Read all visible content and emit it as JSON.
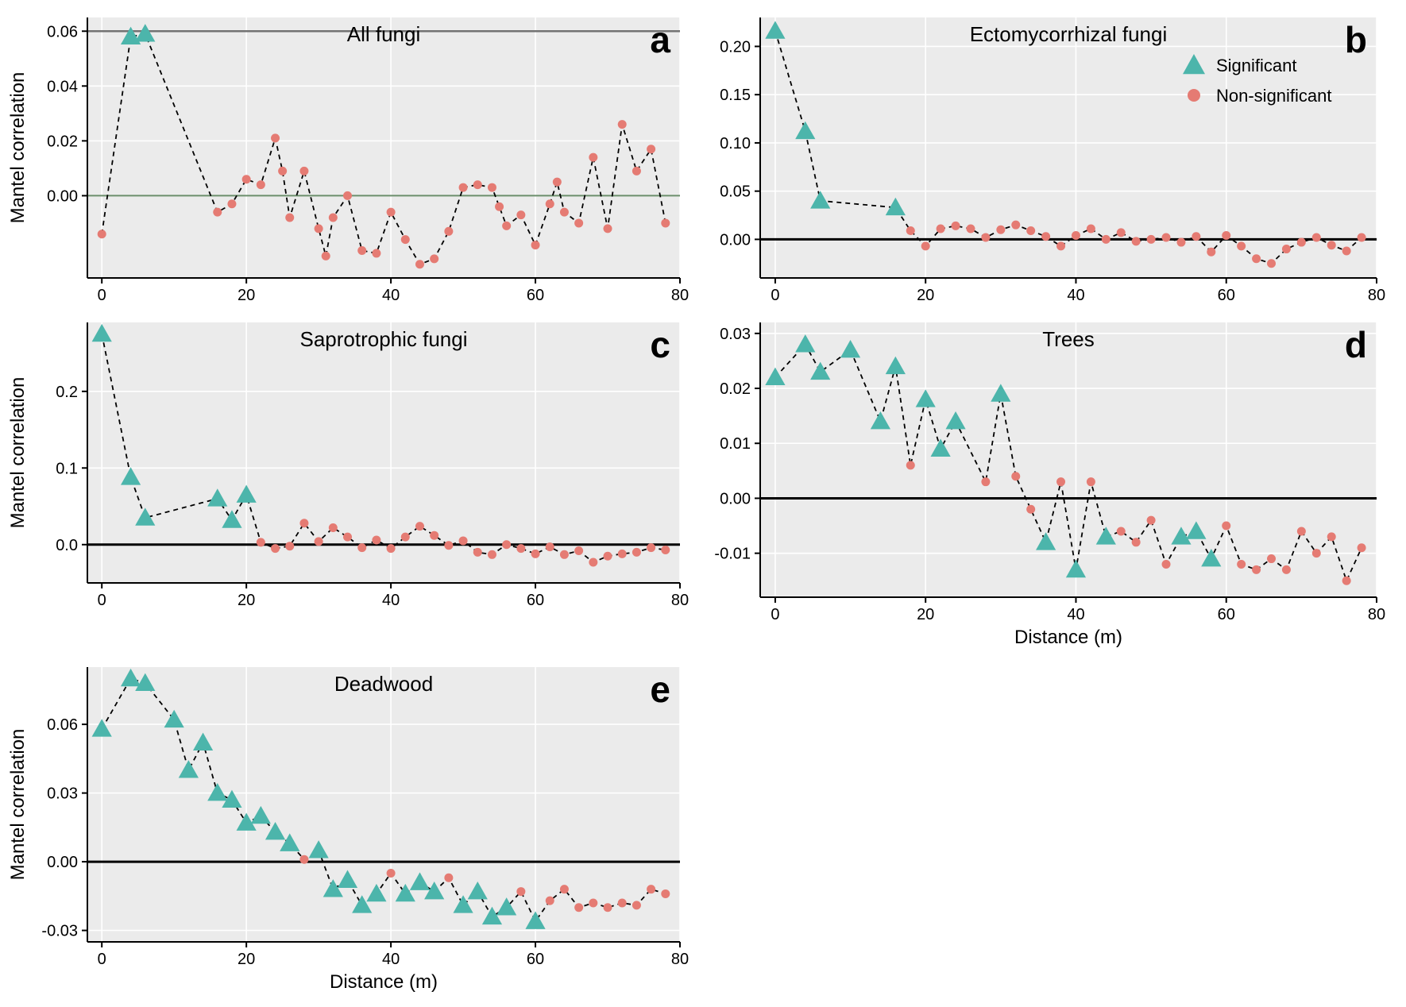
{
  "global": {
    "plot_bg": "#ebebeb",
    "grid_color": "#ffffff",
    "axis_color": "#000000",
    "zero_line_color": "#000000",
    "dash_color": "#000000",
    "sig_color": "#4cb5ab",
    "nonsig_color": "#e57b73",
    "title_fontsize": 26,
    "label_fontsize": 24,
    "tick_fontsize": 20,
    "letter_fontsize": 46,
    "marker_triangle_size": 14,
    "marker_circle_r": 5.5,
    "ylabel": "Mantel correlation",
    "xlabel": "Distance (m)",
    "legend": {
      "sig": "Significant",
      "nonsig": "Non-significant"
    }
  },
  "panels": {
    "a": {
      "title": "All fungi",
      "letter": "a",
      "xlim": [
        -2,
        80
      ],
      "ylim": [
        -0.03,
        0.065
      ],
      "xticks": [
        0,
        20,
        40,
        60,
        80
      ],
      "yticks": [
        "0.00",
        "0.02",
        "0.04",
        "0.06"
      ],
      "ytick_vals": [
        0.0,
        0.02,
        0.04,
        0.06
      ],
      "zero_y": 0,
      "extra_hline": 0.06,
      "extra_hline_color": "#737373",
      "zero_color": "#6b8e6b",
      "show_xlabel": false,
      "show_ylabel": true,
      "series": [
        {
          "x": 0,
          "y": -0.014,
          "sig": false
        },
        {
          "x": 4,
          "y": 0.058,
          "sig": true
        },
        {
          "x": 6,
          "y": 0.059,
          "sig": true
        },
        {
          "x": 16,
          "y": -0.006,
          "sig": false
        },
        {
          "x": 18,
          "y": -0.003,
          "sig": false
        },
        {
          "x": 20,
          "y": 0.006,
          "sig": false
        },
        {
          "x": 22,
          "y": 0.004,
          "sig": false
        },
        {
          "x": 24,
          "y": 0.021,
          "sig": false
        },
        {
          "x": 25,
          "y": 0.009,
          "sig": false
        },
        {
          "x": 26,
          "y": -0.008,
          "sig": false
        },
        {
          "x": 28,
          "y": 0.009,
          "sig": false
        },
        {
          "x": 30,
          "y": -0.012,
          "sig": false
        },
        {
          "x": 31,
          "y": -0.022,
          "sig": false
        },
        {
          "x": 32,
          "y": -0.008,
          "sig": false
        },
        {
          "x": 34,
          "y": 0.0,
          "sig": false
        },
        {
          "x": 36,
          "y": -0.02,
          "sig": false
        },
        {
          "x": 38,
          "y": -0.021,
          "sig": false
        },
        {
          "x": 40,
          "y": -0.006,
          "sig": false
        },
        {
          "x": 42,
          "y": -0.016,
          "sig": false
        },
        {
          "x": 44,
          "y": -0.025,
          "sig": false
        },
        {
          "x": 46,
          "y": -0.023,
          "sig": false
        },
        {
          "x": 48,
          "y": -0.013,
          "sig": false
        },
        {
          "x": 50,
          "y": 0.003,
          "sig": false
        },
        {
          "x": 52,
          "y": 0.004,
          "sig": false
        },
        {
          "x": 54,
          "y": 0.003,
          "sig": false
        },
        {
          "x": 55,
          "y": -0.004,
          "sig": false
        },
        {
          "x": 56,
          "y": -0.011,
          "sig": false
        },
        {
          "x": 58,
          "y": -0.007,
          "sig": false
        },
        {
          "x": 60,
          "y": -0.018,
          "sig": false
        },
        {
          "x": 62,
          "y": -0.003,
          "sig": false
        },
        {
          "x": 63,
          "y": 0.005,
          "sig": false
        },
        {
          "x": 64,
          "y": -0.006,
          "sig": false
        },
        {
          "x": 66,
          "y": -0.01,
          "sig": false
        },
        {
          "x": 68,
          "y": 0.014,
          "sig": false
        },
        {
          "x": 70,
          "y": -0.012,
          "sig": false
        },
        {
          "x": 72,
          "y": 0.026,
          "sig": false
        },
        {
          "x": 74,
          "y": 0.009,
          "sig": false
        },
        {
          "x": 76,
          "y": 0.017,
          "sig": false
        },
        {
          "x": 78,
          "y": -0.01,
          "sig": false
        }
      ]
    },
    "b": {
      "title": "Ectomycorrhizal fungi",
      "letter": "b",
      "xlim": [
        -2,
        80
      ],
      "ylim": [
        -0.04,
        0.23
      ],
      "xticks": [
        0,
        20,
        40,
        60,
        80
      ],
      "yticks": [
        "0.00",
        "0.05",
        "0.10",
        "0.15",
        "0.20"
      ],
      "ytick_vals": [
        0.0,
        0.05,
        0.1,
        0.15,
        0.2
      ],
      "zero_y": 0,
      "show_xlabel": false,
      "show_ylabel": false,
      "show_legend": true,
      "series": [
        {
          "x": 0,
          "y": 0.216,
          "sig": true
        },
        {
          "x": 4,
          "y": 0.112,
          "sig": true
        },
        {
          "x": 6,
          "y": 0.04,
          "sig": true
        },
        {
          "x": 16,
          "y": 0.033,
          "sig": true
        },
        {
          "x": 18,
          "y": 0.009,
          "sig": false
        },
        {
          "x": 20,
          "y": -0.007,
          "sig": false
        },
        {
          "x": 22,
          "y": 0.011,
          "sig": false
        },
        {
          "x": 24,
          "y": 0.014,
          "sig": false
        },
        {
          "x": 26,
          "y": 0.011,
          "sig": false
        },
        {
          "x": 28,
          "y": 0.002,
          "sig": false
        },
        {
          "x": 30,
          "y": 0.01,
          "sig": false
        },
        {
          "x": 32,
          "y": 0.015,
          "sig": false
        },
        {
          "x": 34,
          "y": 0.009,
          "sig": false
        },
        {
          "x": 36,
          "y": 0.003,
          "sig": false
        },
        {
          "x": 38,
          "y": -0.007,
          "sig": false
        },
        {
          "x": 40,
          "y": 0.004,
          "sig": false
        },
        {
          "x": 42,
          "y": 0.011,
          "sig": false
        },
        {
          "x": 44,
          "y": 0.0,
          "sig": false
        },
        {
          "x": 46,
          "y": 0.007,
          "sig": false
        },
        {
          "x": 48,
          "y": -0.002,
          "sig": false
        },
        {
          "x": 50,
          "y": 0.0,
          "sig": false
        },
        {
          "x": 52,
          "y": 0.002,
          "sig": false
        },
        {
          "x": 54,
          "y": -0.003,
          "sig": false
        },
        {
          "x": 56,
          "y": 0.003,
          "sig": false
        },
        {
          "x": 58,
          "y": -0.013,
          "sig": false
        },
        {
          "x": 60,
          "y": 0.004,
          "sig": false
        },
        {
          "x": 62,
          "y": -0.007,
          "sig": false
        },
        {
          "x": 64,
          "y": -0.02,
          "sig": false
        },
        {
          "x": 66,
          "y": -0.025,
          "sig": false
        },
        {
          "x": 68,
          "y": -0.01,
          "sig": false
        },
        {
          "x": 70,
          "y": -0.003,
          "sig": false
        },
        {
          "x": 72,
          "y": 0.002,
          "sig": false
        },
        {
          "x": 74,
          "y": -0.006,
          "sig": false
        },
        {
          "x": 76,
          "y": -0.012,
          "sig": false
        },
        {
          "x": 78,
          "y": 0.002,
          "sig": false
        }
      ]
    },
    "c": {
      "title": "Saprotrophic fungi",
      "letter": "c",
      "xlim": [
        -2,
        80
      ],
      "ylim": [
        -0.05,
        0.29
      ],
      "xticks": [
        0,
        20,
        40,
        60,
        80
      ],
      "yticks": [
        "0.0",
        "0.1",
        "0.2"
      ],
      "ytick_vals": [
        0.0,
        0.1,
        0.2
      ],
      "zero_y": 0,
      "show_xlabel": false,
      "show_ylabel": true,
      "series": [
        {
          "x": 0,
          "y": 0.275,
          "sig": true
        },
        {
          "x": 4,
          "y": 0.088,
          "sig": true
        },
        {
          "x": 6,
          "y": 0.035,
          "sig": true
        },
        {
          "x": 16,
          "y": 0.06,
          "sig": true
        },
        {
          "x": 18,
          "y": 0.032,
          "sig": true
        },
        {
          "x": 20,
          "y": 0.065,
          "sig": true
        },
        {
          "x": 22,
          "y": 0.003,
          "sig": false
        },
        {
          "x": 24,
          "y": -0.005,
          "sig": false
        },
        {
          "x": 26,
          "y": -0.002,
          "sig": false
        },
        {
          "x": 28,
          "y": 0.028,
          "sig": false
        },
        {
          "x": 30,
          "y": 0.004,
          "sig": false
        },
        {
          "x": 32,
          "y": 0.022,
          "sig": false
        },
        {
          "x": 34,
          "y": 0.01,
          "sig": false
        },
        {
          "x": 36,
          "y": -0.004,
          "sig": false
        },
        {
          "x": 38,
          "y": 0.006,
          "sig": false
        },
        {
          "x": 40,
          "y": -0.005,
          "sig": false
        },
        {
          "x": 42,
          "y": 0.01,
          "sig": false
        },
        {
          "x": 44,
          "y": 0.024,
          "sig": false
        },
        {
          "x": 46,
          "y": 0.012,
          "sig": false
        },
        {
          "x": 48,
          "y": -0.001,
          "sig": false
        },
        {
          "x": 50,
          "y": 0.005,
          "sig": false
        },
        {
          "x": 52,
          "y": -0.01,
          "sig": false
        },
        {
          "x": 54,
          "y": -0.013,
          "sig": false
        },
        {
          "x": 56,
          "y": 0.0,
          "sig": false
        },
        {
          "x": 58,
          "y": -0.005,
          "sig": false
        },
        {
          "x": 60,
          "y": -0.012,
          "sig": false
        },
        {
          "x": 62,
          "y": -0.003,
          "sig": false
        },
        {
          "x": 64,
          "y": -0.013,
          "sig": false
        },
        {
          "x": 66,
          "y": -0.008,
          "sig": false
        },
        {
          "x": 68,
          "y": -0.023,
          "sig": false
        },
        {
          "x": 70,
          "y": -0.015,
          "sig": false
        },
        {
          "x": 72,
          "y": -0.012,
          "sig": false
        },
        {
          "x": 74,
          "y": -0.01,
          "sig": false
        },
        {
          "x": 76,
          "y": -0.004,
          "sig": false
        },
        {
          "x": 78,
          "y": -0.007,
          "sig": false
        }
      ]
    },
    "d": {
      "title": "Trees",
      "letter": "d",
      "xlim": [
        -2,
        80
      ],
      "ylim": [
        -0.018,
        0.032
      ],
      "xticks": [
        0,
        20,
        40,
        60,
        80
      ],
      "yticks": [
        "-0.01",
        "0.00",
        "0.01",
        "0.02",
        "0.03"
      ],
      "ytick_vals": [
        -0.01,
        0.0,
        0.01,
        0.02,
        0.03
      ],
      "zero_y": 0,
      "show_xlabel": true,
      "show_ylabel": false,
      "series": [
        {
          "x": 0,
          "y": 0.022,
          "sig": true
        },
        {
          "x": 4,
          "y": 0.028,
          "sig": true
        },
        {
          "x": 6,
          "y": 0.023,
          "sig": true
        },
        {
          "x": 10,
          "y": 0.027,
          "sig": true
        },
        {
          "x": 14,
          "y": 0.014,
          "sig": true
        },
        {
          "x": 16,
          "y": 0.024,
          "sig": true
        },
        {
          "x": 18,
          "y": 0.006,
          "sig": false
        },
        {
          "x": 20,
          "y": 0.018,
          "sig": true
        },
        {
          "x": 22,
          "y": 0.009,
          "sig": true
        },
        {
          "x": 24,
          "y": 0.014,
          "sig": true
        },
        {
          "x": 28,
          "y": 0.003,
          "sig": false
        },
        {
          "x": 30,
          "y": 0.019,
          "sig": true
        },
        {
          "x": 32,
          "y": 0.004,
          "sig": false
        },
        {
          "x": 34,
          "y": -0.002,
          "sig": false
        },
        {
          "x": 36,
          "y": -0.008,
          "sig": true
        },
        {
          "x": 38,
          "y": 0.003,
          "sig": false
        },
        {
          "x": 40,
          "y": -0.013,
          "sig": true
        },
        {
          "x": 42,
          "y": 0.003,
          "sig": false
        },
        {
          "x": 44,
          "y": -0.007,
          "sig": true
        },
        {
          "x": 46,
          "y": -0.006,
          "sig": false
        },
        {
          "x": 48,
          "y": -0.008,
          "sig": false
        },
        {
          "x": 50,
          "y": -0.004,
          "sig": false
        },
        {
          "x": 52,
          "y": -0.012,
          "sig": false
        },
        {
          "x": 54,
          "y": -0.007,
          "sig": true
        },
        {
          "x": 56,
          "y": -0.006,
          "sig": true
        },
        {
          "x": 58,
          "y": -0.011,
          "sig": true
        },
        {
          "x": 60,
          "y": -0.005,
          "sig": false
        },
        {
          "x": 62,
          "y": -0.012,
          "sig": false
        },
        {
          "x": 64,
          "y": -0.013,
          "sig": false
        },
        {
          "x": 66,
          "y": -0.011,
          "sig": false
        },
        {
          "x": 68,
          "y": -0.013,
          "sig": false
        },
        {
          "x": 70,
          "y": -0.006,
          "sig": false
        },
        {
          "x": 72,
          "y": -0.01,
          "sig": false
        },
        {
          "x": 74,
          "y": -0.007,
          "sig": false
        },
        {
          "x": 76,
          "y": -0.015,
          "sig": false
        },
        {
          "x": 78,
          "y": -0.009,
          "sig": false
        }
      ]
    },
    "e": {
      "title": "Deadwood",
      "letter": "e",
      "xlim": [
        -2,
        80
      ],
      "ylim": [
        -0.035,
        0.085
      ],
      "xticks": [
        0,
        20,
        40,
        60,
        80
      ],
      "yticks": [
        "-0.03",
        "0.00",
        "0.03",
        "0.06"
      ],
      "ytick_vals": [
        -0.03,
        0.0,
        0.03,
        0.06
      ],
      "zero_y": 0,
      "show_xlabel": true,
      "show_ylabel": true,
      "series": [
        {
          "x": 0,
          "y": 0.058,
          "sig": true
        },
        {
          "x": 4,
          "y": 0.08,
          "sig": true
        },
        {
          "x": 6,
          "y": 0.078,
          "sig": true
        },
        {
          "x": 10,
          "y": 0.062,
          "sig": true
        },
        {
          "x": 12,
          "y": 0.04,
          "sig": true
        },
        {
          "x": 14,
          "y": 0.052,
          "sig": true
        },
        {
          "x": 16,
          "y": 0.03,
          "sig": true
        },
        {
          "x": 18,
          "y": 0.027,
          "sig": true
        },
        {
          "x": 20,
          "y": 0.017,
          "sig": true
        },
        {
          "x": 22,
          "y": 0.02,
          "sig": true
        },
        {
          "x": 24,
          "y": 0.013,
          "sig": true
        },
        {
          "x": 26,
          "y": 0.008,
          "sig": true
        },
        {
          "x": 28,
          "y": 0.001,
          "sig": false
        },
        {
          "x": 30,
          "y": 0.005,
          "sig": true
        },
        {
          "x": 32,
          "y": -0.012,
          "sig": true
        },
        {
          "x": 34,
          "y": -0.008,
          "sig": true
        },
        {
          "x": 36,
          "y": -0.019,
          "sig": true
        },
        {
          "x": 38,
          "y": -0.014,
          "sig": true
        },
        {
          "x": 40,
          "y": -0.005,
          "sig": false
        },
        {
          "x": 42,
          "y": -0.014,
          "sig": true
        },
        {
          "x": 44,
          "y": -0.009,
          "sig": true
        },
        {
          "x": 46,
          "y": -0.013,
          "sig": true
        },
        {
          "x": 48,
          "y": -0.007,
          "sig": false
        },
        {
          "x": 50,
          "y": -0.019,
          "sig": true
        },
        {
          "x": 52,
          "y": -0.013,
          "sig": true
        },
        {
          "x": 54,
          "y": -0.024,
          "sig": true
        },
        {
          "x": 56,
          "y": -0.02,
          "sig": true
        },
        {
          "x": 58,
          "y": -0.013,
          "sig": false
        },
        {
          "x": 60,
          "y": -0.026,
          "sig": true
        },
        {
          "x": 62,
          "y": -0.017,
          "sig": false
        },
        {
          "x": 64,
          "y": -0.012,
          "sig": false
        },
        {
          "x": 66,
          "y": -0.02,
          "sig": false
        },
        {
          "x": 68,
          "y": -0.018,
          "sig": false
        },
        {
          "x": 70,
          "y": -0.02,
          "sig": false
        },
        {
          "x": 72,
          "y": -0.018,
          "sig": false
        },
        {
          "x": 74,
          "y": -0.019,
          "sig": false
        },
        {
          "x": 76,
          "y": -0.012,
          "sig": false
        },
        {
          "x": 78,
          "y": -0.014,
          "sig": false
        }
      ]
    }
  }
}
